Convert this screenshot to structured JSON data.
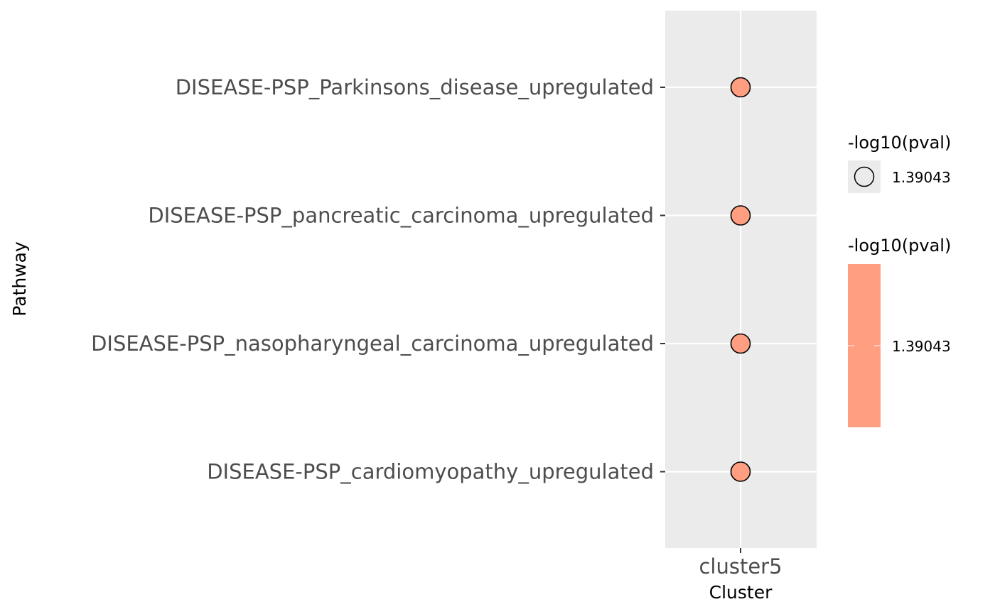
{
  "chart_data": {
    "type": "scatter",
    "xlabel": "Cluster",
    "ylabel": "Pathway",
    "categories_x": [
      "cluster5"
    ],
    "categories_y": [
      "DISEASE-PSP_Parkinsons_disease_upregulated",
      "DISEASE-PSP_pancreatic_carcinoma_upregulated",
      "DISEASE-PSP_nasopharyngeal_carcinoma_upregulated",
      "DISEASE-PSP_cardiomyopathy_upregulated"
    ],
    "points": [
      {
        "x": "cluster5",
        "y": "DISEASE-PSP_Parkinsons_disease_upregulated",
        "value": 1.39043
      },
      {
        "x": "cluster5",
        "y": "DISEASE-PSP_pancreatic_carcinoma_upregulated",
        "value": 1.39043
      },
      {
        "x": "cluster5",
        "y": "DISEASE-PSP_nasopharyngeal_carcinoma_upregulated",
        "value": 1.39043
      },
      {
        "x": "cluster5",
        "y": "DISEASE-PSP_cardiomyopathy_upregulated",
        "value": 1.39043
      }
    ],
    "point_color": "#ff9e80",
    "panel_background": "#ebebeb",
    "grid": true,
    "legend_position": "right",
    "legends": [
      {
        "kind": "size",
        "title": "-log10(pval)",
        "labels": [
          "1.39043"
        ]
      },
      {
        "kind": "color",
        "title": "-log10(pval)",
        "labels": [
          "1.39043"
        ],
        "color": "#ff9e80"
      }
    ]
  }
}
